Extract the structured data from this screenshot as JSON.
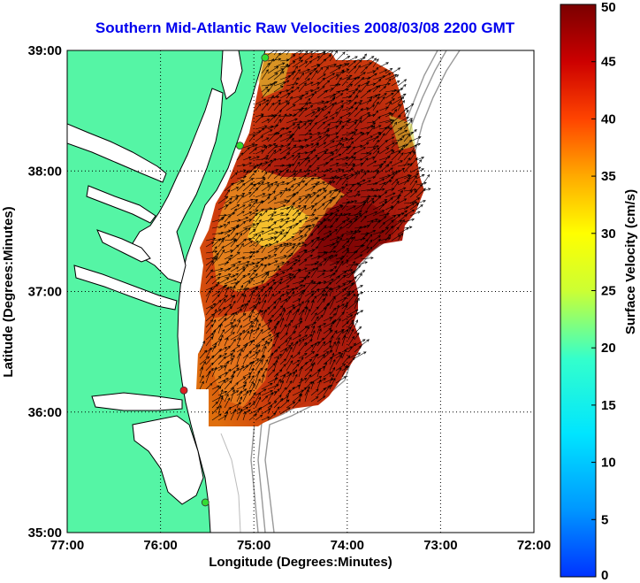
{
  "title": "Southern Mid-Atlantic Raw Velocities 2008/03/08 2200 GMT",
  "map": {
    "xlabel": "Longitude (Degrees:Minutes)",
    "ylabel": "Latitude (Degrees:Minutes)",
    "lon_range": [
      -77,
      -72
    ],
    "lat_range": [
      35,
      39
    ],
    "lon_ticks": [
      "77:00",
      "76:00",
      "75:00",
      "74:00",
      "73:00",
      "72:00"
    ],
    "lat_ticks": [
      "35:00",
      "36:00",
      "37:00",
      "38:00",
      "39:00"
    ],
    "land_color": "#55f5a5",
    "ocean_color": "#ffffff",
    "stations": [
      {
        "lon": -74.88,
        "lat": 38.94,
        "color": "#33dd33"
      },
      {
        "lon": -75.15,
        "lat": 38.21,
        "color": "#33dd33"
      },
      {
        "lon": -75.75,
        "lat": 36.18,
        "color": "#dd2222"
      },
      {
        "lon": -75.52,
        "lat": 35.25,
        "color": "#33dd33"
      }
    ]
  },
  "colorbar": {
    "label": "Surface Velocity (cm/s)",
    "min": 0,
    "max": 50,
    "ticks": [
      "0",
      "5",
      "10",
      "15",
      "20",
      "25",
      "30",
      "35",
      "40",
      "45",
      "50"
    ]
  }
}
